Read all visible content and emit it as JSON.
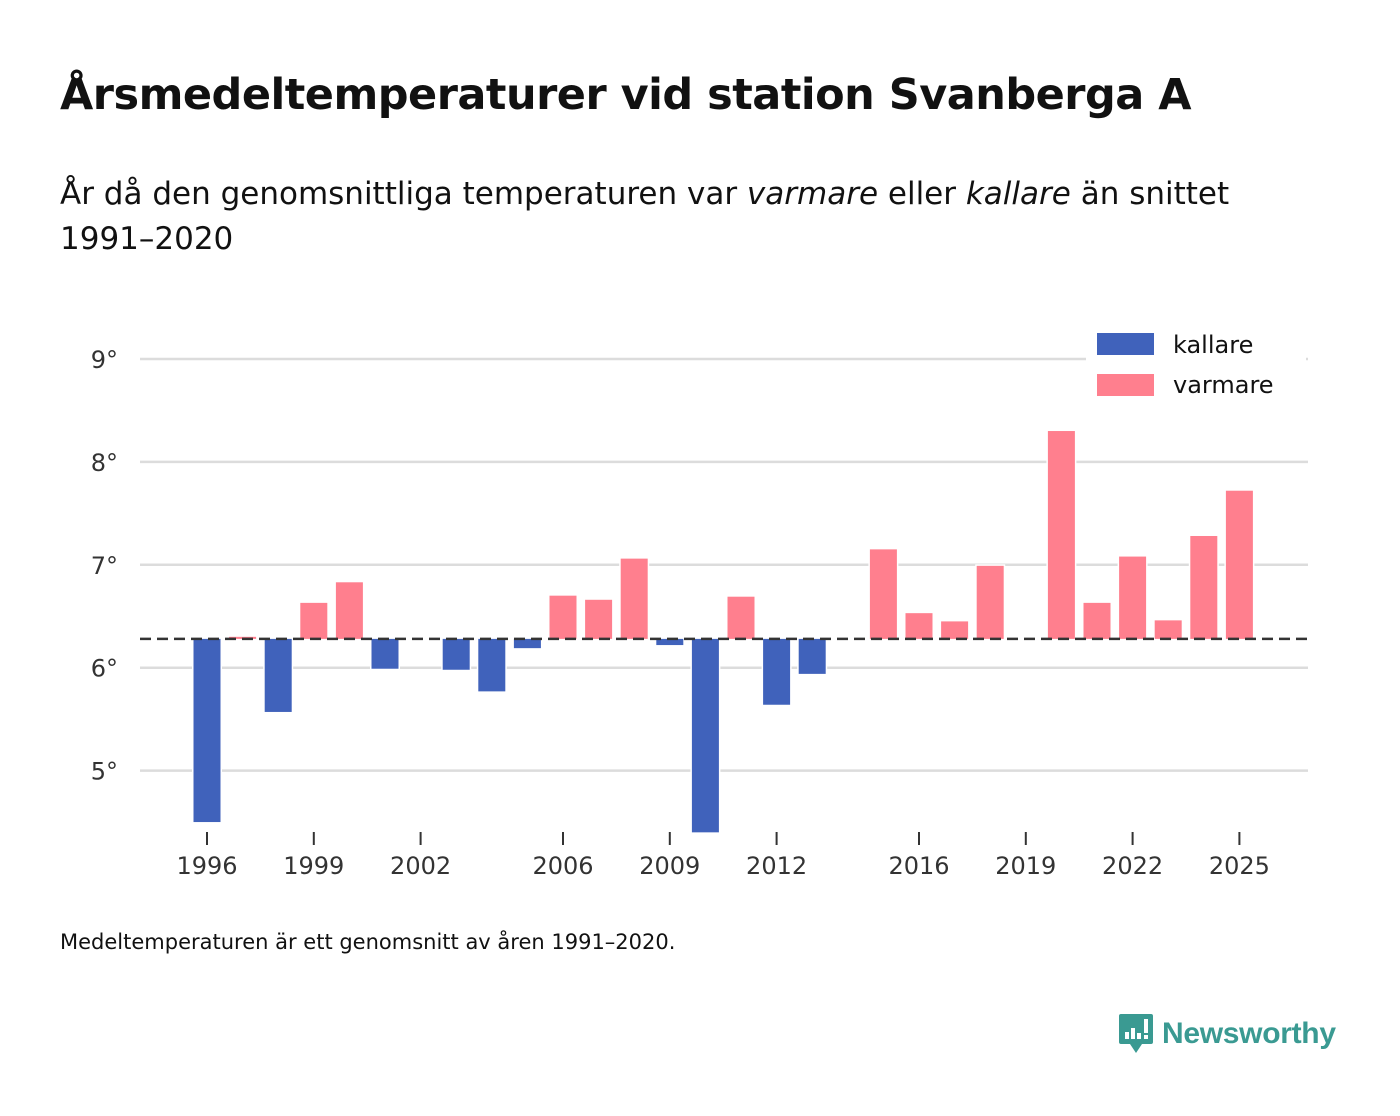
{
  "header": {
    "title": "Årsmedeltemperaturer vid station Svanberga A",
    "subtitle_parts": [
      "År då den genomsnittliga temperaturen var ",
      "varmare",
      " eller ",
      "kallare",
      " än snittet 1991–2020"
    ]
  },
  "footer": {
    "note": "Medeltemperaturen är ett genomsnitt av åren 1991–2020.",
    "brand": "Newsworthy",
    "brand_color": "#3a9a92"
  },
  "chart_data": {
    "type": "bar",
    "title": "Årsmedeltemperaturer vid station Svanberga A",
    "xlabel": "",
    "ylabel": "",
    "baseline": 6.28,
    "baseline_label": "snittet 1991–2020",
    "ylim": [
      4.4,
      9.6
    ],
    "yticks": [
      5,
      6,
      7,
      8,
      9
    ],
    "ytick_labels": [
      "5°",
      "6°",
      "7°",
      "8°",
      "9°"
    ],
    "xlim": [
      1994.2,
      2027
    ],
    "xticks": [
      1996,
      1999,
      2002,
      2006,
      2009,
      2012,
      2016,
      2019,
      2022,
      2025
    ],
    "grid": true,
    "legend_position": "top-right",
    "colors": {
      "kallare": "#4062bb",
      "varmare": "#ff7f8e"
    },
    "legend": [
      {
        "key": "kallare",
        "label": "kallare"
      },
      {
        "key": "varmare",
        "label": "varmare"
      }
    ],
    "x": [
      1996,
      1997,
      1998,
      1999,
      2000,
      2001,
      2003,
      2004,
      2005,
      2006,
      2007,
      2008,
      2009,
      2010,
      2011,
      2012,
      2013,
      2015,
      2016,
      2017,
      2018,
      2020,
      2021,
      2022,
      2023,
      2024,
      2025
    ],
    "values": [
      4.5,
      6.3,
      5.57,
      6.63,
      6.83,
      5.99,
      5.98,
      5.77,
      6.19,
      6.7,
      6.66,
      7.06,
      6.22,
      4.4,
      6.69,
      5.64,
      5.94,
      7.15,
      6.53,
      6.45,
      6.99,
      8.3,
      6.63,
      7.08,
      6.46,
      7.28,
      7.72
    ]
  }
}
